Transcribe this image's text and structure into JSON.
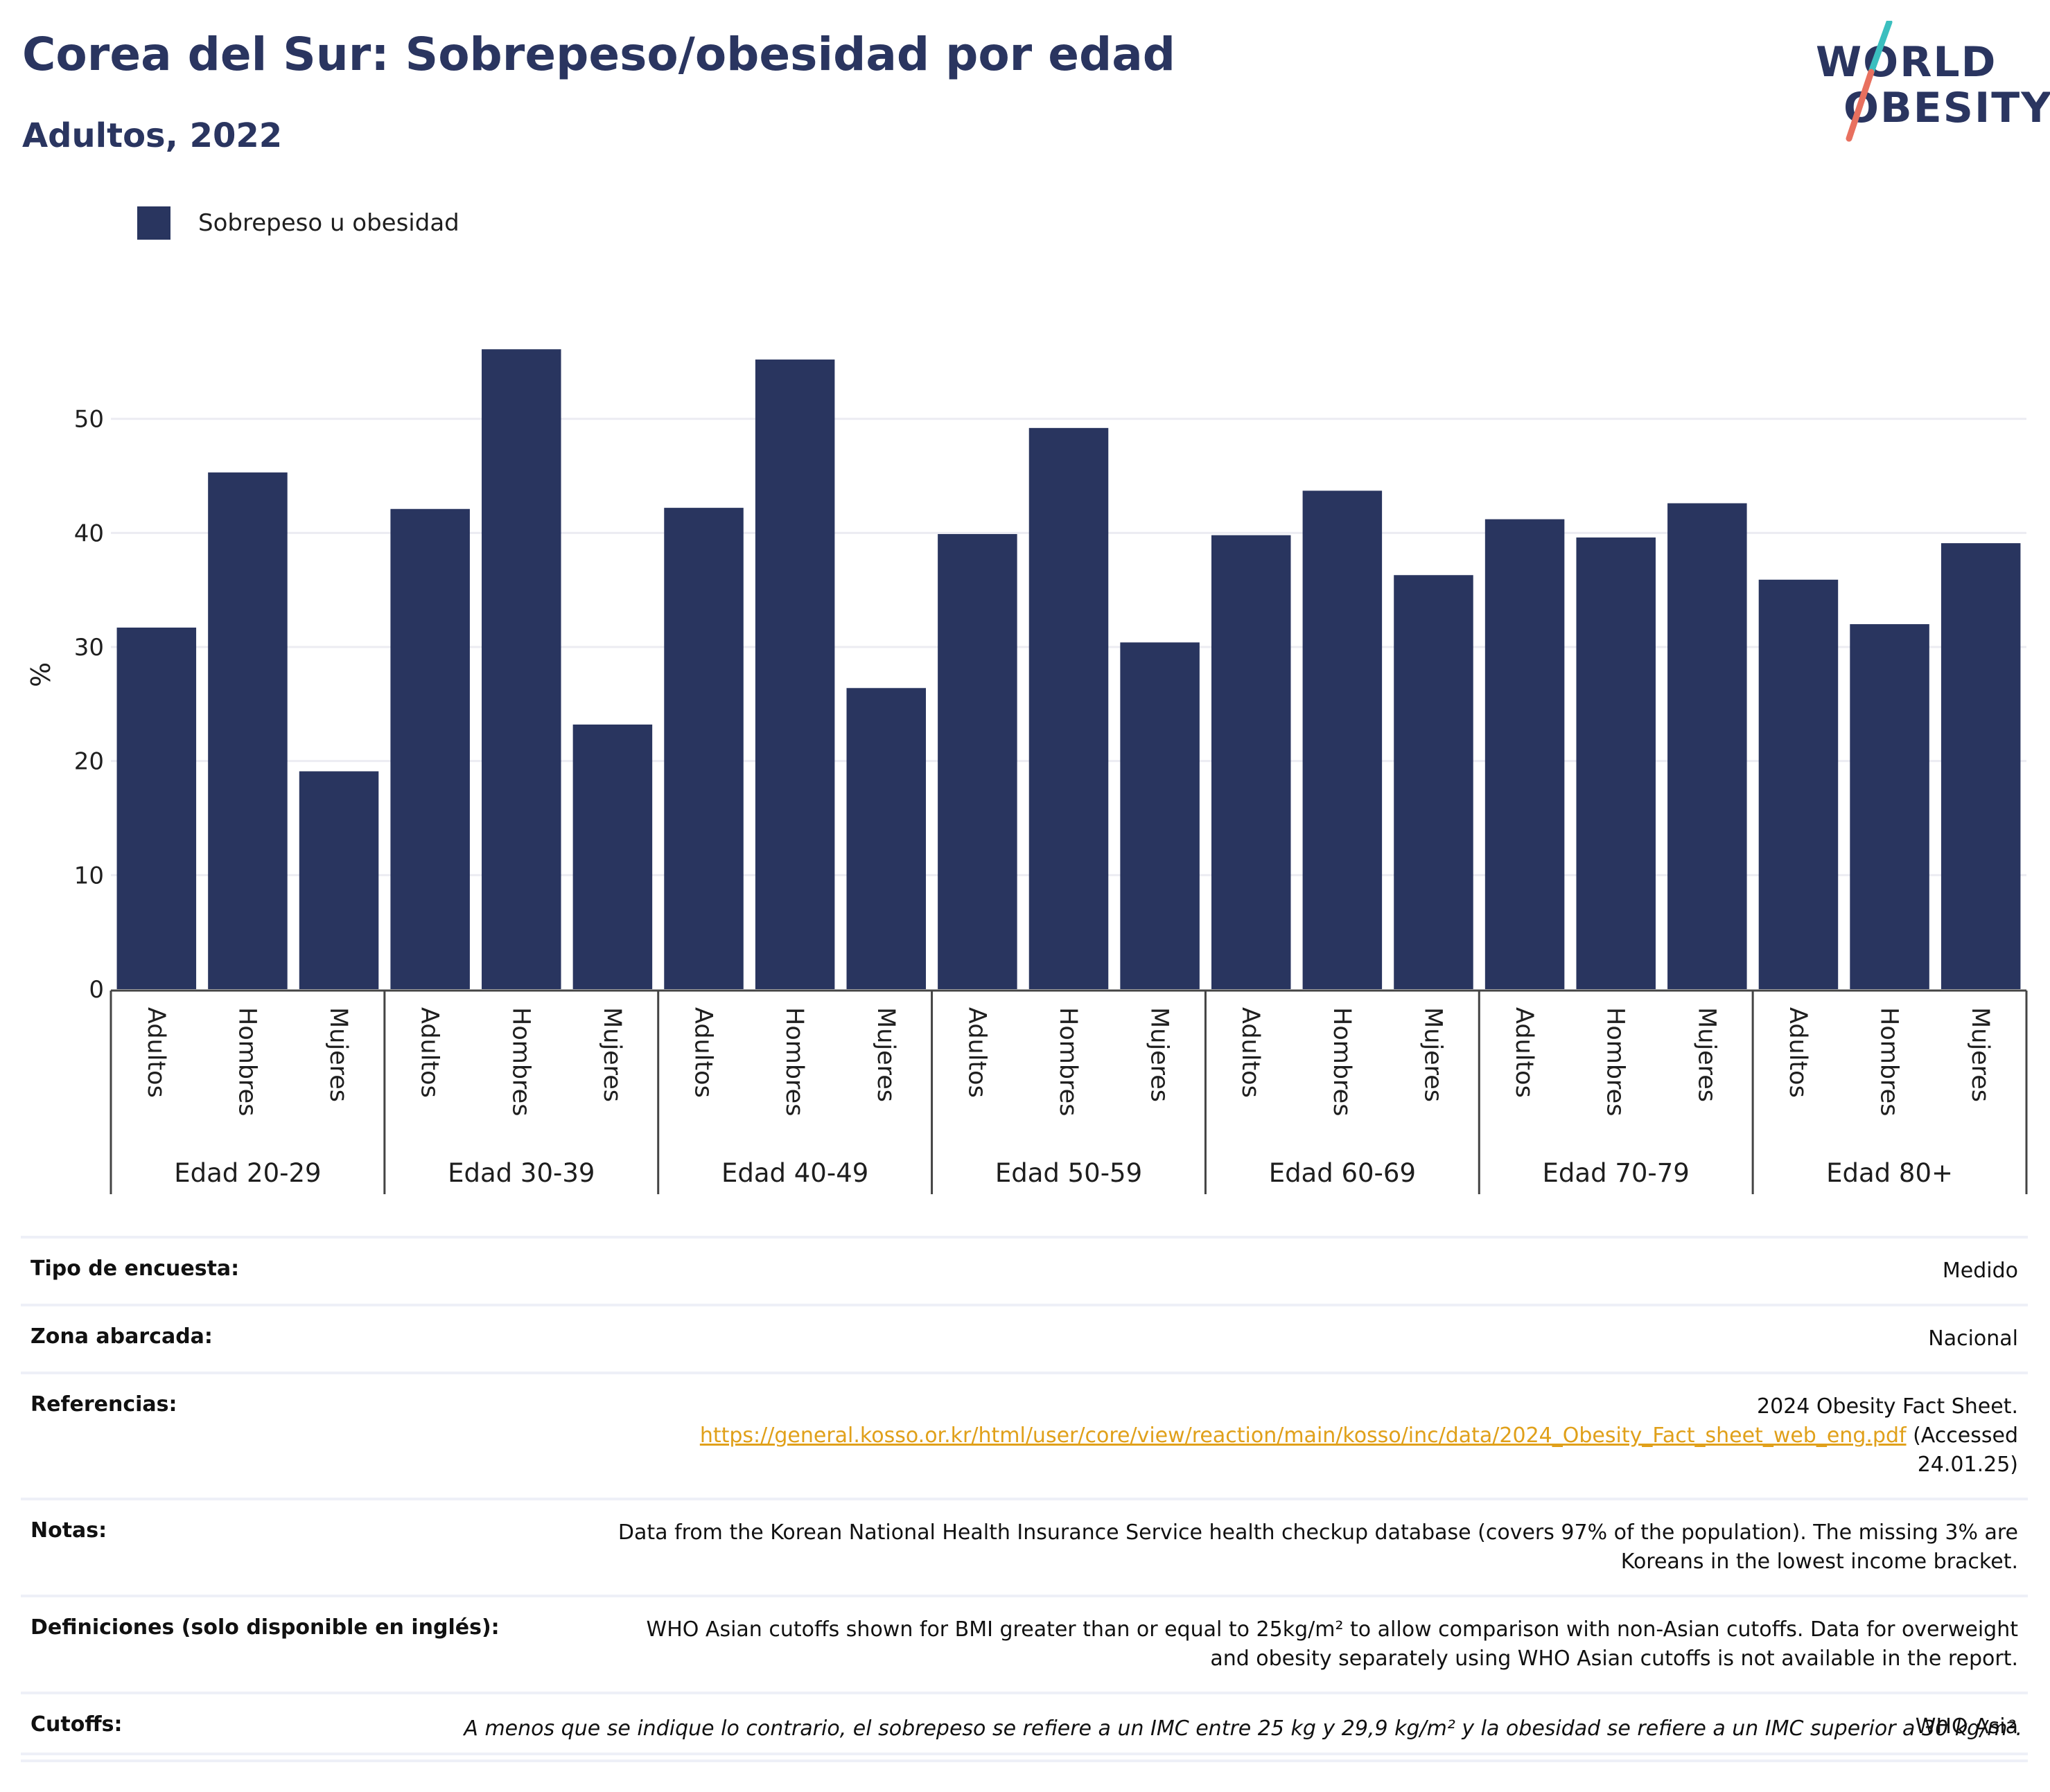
{
  "title": "Corea del Sur: Sobrepeso/obesidad por edad",
  "subtitle": "Adultos, 2022",
  "logo": {
    "line1": "WORLD",
    "line2": "OBESITY",
    "slash_colors": [
      "#3bbfbf",
      "#e8705f"
    ]
  },
  "legend": {
    "label": "Sobrepeso u obesidad",
    "color": "#29355f"
  },
  "chart_data": {
    "type": "bar",
    "ylabel": "%",
    "ylim": [
      0,
      60
    ],
    "yticks": [
      0,
      10,
      20,
      30,
      40,
      50
    ],
    "grid": true,
    "legend_position": "top-left",
    "bar_color": "#29355f",
    "groups": [
      {
        "label": "Edad 20-29",
        "categories": [
          "Adultos",
          "Hombres",
          "Mujeres"
        ],
        "values": [
          31.7,
          45.3,
          19.1
        ]
      },
      {
        "label": "Edad 30-39",
        "categories": [
          "Adultos",
          "Hombres",
          "Mujeres"
        ],
        "values": [
          42.1,
          56.1,
          23.2
        ]
      },
      {
        "label": "Edad 40-49",
        "categories": [
          "Adultos",
          "Hombres",
          "Mujeres"
        ],
        "values": [
          42.2,
          55.2,
          26.4
        ]
      },
      {
        "label": "Edad 50-59",
        "categories": [
          "Adultos",
          "Hombres",
          "Mujeres"
        ],
        "values": [
          39.9,
          49.2,
          30.4
        ]
      },
      {
        "label": "Edad 60-69",
        "categories": [
          "Adultos",
          "Hombres",
          "Mujeres"
        ],
        "values": [
          39.8,
          43.7,
          36.3
        ]
      },
      {
        "label": "Edad 70-79",
        "categories": [
          "Adultos",
          "Hombres",
          "Mujeres"
        ],
        "values": [
          41.2,
          39.6,
          42.6
        ]
      },
      {
        "label": "Edad 80+",
        "categories": [
          "Adultos",
          "Hombres",
          "Mujeres"
        ],
        "values": [
          35.9,
          32.0,
          39.1
        ]
      }
    ]
  },
  "info": {
    "survey_type": {
      "key": "Tipo de encuesta:",
      "value": "Medido"
    },
    "area": {
      "key": "Zona abarcada:",
      "value": "Nacional"
    },
    "references": {
      "key": "Referencias:",
      "line1": "2024 Obesity Fact Sheet.",
      "url": "https://general.kosso.or.kr/html/user/core/view/reaction/main/kosso/inc/data/2024_Obesity_Fact_sheet_web_eng.pdf",
      "accessed_a": "(Accessed",
      "accessed_b": "24.01.25)"
    },
    "notes": {
      "key": "Notas:",
      "line1": "Data from the Korean National Health Insurance Service health checkup database (covers 97% of the population). The missing 3% are",
      "line2": "Koreans in the lowest income bracket."
    },
    "definitions": {
      "key": "Definiciones (solo disponible en inglés):",
      "line1": "WHO Asian cutoffs shown for BMI greater than or equal to 25kg/m² to allow comparison with non-Asian cutoffs. Data for overweight",
      "line2": "and obesity separately using WHO Asian cutoffs is not available in the report."
    },
    "cutoffs": {
      "key": "Cutoffs:",
      "value": "WHO Asia"
    }
  },
  "footnote": "A menos que se indique lo contrario, el sobrepeso se refiere a un IMC entre 25 kg y 29,9 kg/m² y la obesidad se refiere a un IMC superior a 30 kg/m²."
}
